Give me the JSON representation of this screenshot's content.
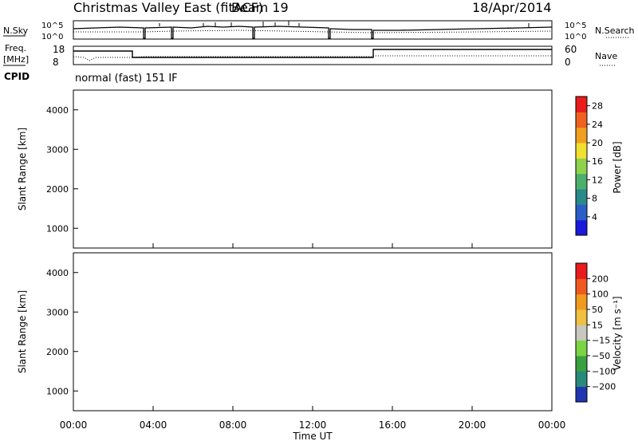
{
  "header": {
    "title": "Christmas Valley East (fitACF)",
    "beam": "Beam 19",
    "date": "18/Apr/2014"
  },
  "status_panels": {
    "nsky_label": "N.Sky",
    "noise_ticks_left": [
      "10^5",
      "10^0"
    ],
    "noise_ticks_right": [
      "10^5",
      "10^0"
    ],
    "nsearch_label": "N.Search",
    "freq_label_line1": "Freq.",
    "freq_label_line2": "[MHz]",
    "freq_ticks": [
      "18",
      "8"
    ],
    "nave_ticks": [
      "60",
      "0"
    ],
    "nave_label": "Nave",
    "cpid_label": "CPID",
    "cpid_value": "normal (fast) 151 IF"
  },
  "chart_data": [
    {
      "type": "heatmap",
      "name": "power",
      "ylabel": "Slant Range [km]",
      "yticks": [
        "1000",
        "2000",
        "3000",
        "4000"
      ],
      "ylim": [
        500,
        4500
      ],
      "colorbar_label": "Power [dB]",
      "colorbar_ticks": [
        "4",
        "8",
        "12",
        "16",
        "20",
        "24",
        "28"
      ],
      "colorbar_colors": [
        "#1a1adc",
        "#2a5fc8",
        "#2a8a8a",
        "#4caf6c",
        "#8fd24c",
        "#f2e030",
        "#f0a020",
        "#f06020",
        "#e81c1c"
      ],
      "colorbar_range": [
        0,
        30
      ]
    },
    {
      "type": "heatmap",
      "name": "velocity",
      "ylabel": "Slant Range [km]",
      "yticks": [
        "1000",
        "2000",
        "3000",
        "4000"
      ],
      "ylim": [
        500,
        4500
      ],
      "colorbar_label": "Velocity [m s⁻¹]",
      "colorbar_ticks": [
        "200",
        "100",
        "50",
        "15",
        "−15",
        "−50",
        "−100",
        "−200"
      ],
      "colorbar_colors": [
        "#2035b0",
        "#2a8a7a",
        "#3aa040",
        "#7ad444",
        "#c8c8c0",
        "#f0c040",
        "#f09a20",
        "#f05a20",
        "#e81c1c"
      ]
    }
  ],
  "time_axis": {
    "ticks": [
      "00:00",
      "04:00",
      "08:00",
      "12:00",
      "16:00",
      "20:00",
      "00:00"
    ],
    "xlabel": "Time UT"
  }
}
